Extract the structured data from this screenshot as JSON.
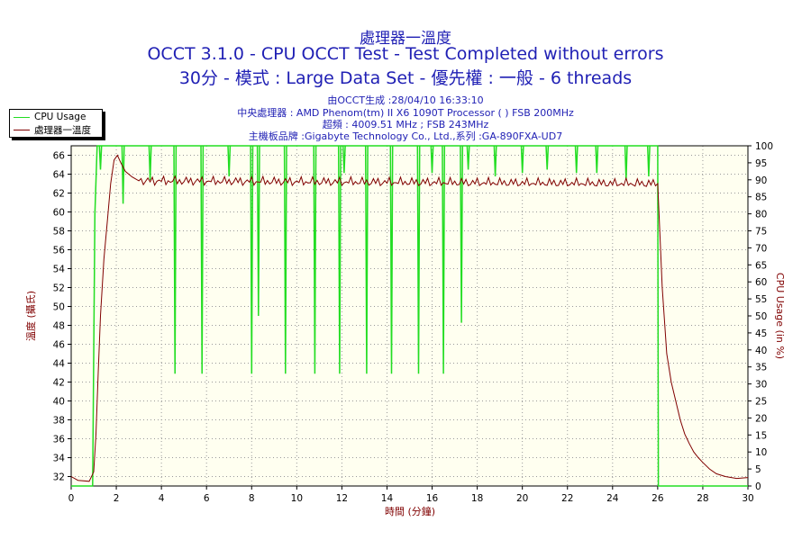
{
  "header": {
    "title_line1": "處理器一溫度",
    "title_line2": "OCCT 3.1.0 - CPU OCCT Test - Test Completed without errors",
    "title_line3": "30分 - 模式 : Large Data Set - 優先權 : 一般 - 6 threads",
    "info_line1": "由OCCT生成 :28/04/10 16:33:10",
    "info_line2": "中央處理器 : AMD Phenom(tm) II X6 1090T Processor (  ) FSB 200MHz",
    "info_line3": "超頻 : 4009.51 MHz ; FSB 243MHz",
    "info_line4": "主機板品牌 :Gigabyte Technology Co., Ltd.,系列 :GA-890FXA-UD7"
  },
  "colors": {
    "cpu_usage": "#22dd22",
    "temperature": "#800000",
    "plot_bg": "#fffff0",
    "grid": "#9a9a9a",
    "text_blue": "#1f1fb4"
  },
  "legend": {
    "items": [
      "CPU Usage",
      "處理器一溫度"
    ],
    "placement": "top-left"
  },
  "chart_data": {
    "type": "line",
    "xlabel": "時間 (分鐘)",
    "ylabel_left": "溫度 (攝氏)",
    "ylabel_right": "CPU Usage (in %)",
    "xlim": [
      0,
      30
    ],
    "ylim_left": [
      31,
      67
    ],
    "ylim_right": [
      0,
      100
    ],
    "x_ticks": [
      0,
      2,
      4,
      6,
      8,
      10,
      12,
      14,
      16,
      18,
      20,
      22,
      24,
      26,
      28,
      30
    ],
    "y_left_ticks": [
      32,
      34,
      36,
      38,
      40,
      42,
      44,
      46,
      48,
      50,
      52,
      54,
      56,
      58,
      60,
      62,
      64,
      66
    ],
    "y_right_ticks": [
      0,
      5,
      10,
      15,
      20,
      25,
      30,
      35,
      40,
      45,
      50,
      55,
      60,
      65,
      70,
      75,
      80,
      85,
      90,
      95,
      100
    ],
    "grid": true,
    "series": [
      {
        "name": "CPU Usage",
        "axis": "right",
        "x": [
          0,
          0.95,
          1.05,
          1.15,
          26.0,
          26.03,
          26.1,
          30
        ],
        "y": [
          0,
          0,
          80,
          100,
          100,
          0,
          0,
          0
        ],
        "dips": [
          {
            "x": 1.3,
            "y": 93
          },
          {
            "x": 2.3,
            "y": 83
          },
          {
            "x": 3.5,
            "y": 90
          },
          {
            "x": 4.6,
            "y": 33
          },
          {
            "x": 5.8,
            "y": 33
          },
          {
            "x": 7.0,
            "y": 91
          },
          {
            "x": 8.0,
            "y": 33
          },
          {
            "x": 8.3,
            "y": 50
          },
          {
            "x": 9.5,
            "y": 33
          },
          {
            "x": 10.8,
            "y": 33
          },
          {
            "x": 11.9,
            "y": 33
          },
          {
            "x": 12.1,
            "y": 92
          },
          {
            "x": 13.1,
            "y": 33
          },
          {
            "x": 14.2,
            "y": 33
          },
          {
            "x": 15.4,
            "y": 33
          },
          {
            "x": 16.0,
            "y": 92
          },
          {
            "x": 16.5,
            "y": 33
          },
          {
            "x": 17.3,
            "y": 48
          },
          {
            "x": 17.6,
            "y": 93
          },
          {
            "x": 18.8,
            "y": 91
          },
          {
            "x": 20.0,
            "y": 92
          },
          {
            "x": 21.1,
            "y": 93
          },
          {
            "x": 22.4,
            "y": 92
          },
          {
            "x": 23.3,
            "y": 92
          },
          {
            "x": 24.6,
            "y": 90
          },
          {
            "x": 25.6,
            "y": 91
          }
        ]
      },
      {
        "name": "處理器一溫度",
        "axis": "left",
        "x": [
          0,
          0.3,
          0.8,
          1.0,
          1.1,
          1.2,
          1.3,
          1.45,
          1.6,
          1.75,
          1.9,
          2.05,
          2.2,
          2.4,
          2.7,
          3.0,
          26.0,
          26.2,
          26.4,
          26.6,
          26.8,
          27.0,
          27.2,
          27.4,
          27.6,
          27.8,
          28.0,
          28.3,
          28.6,
          29.0,
          29.5,
          30
        ],
        "y": [
          32,
          31.6,
          31.5,
          32.5,
          36.5,
          43,
          49,
          55,
          59,
          63,
          65.5,
          66,
          65.2,
          64.3,
          63.7,
          63.3,
          63.0,
          52,
          45,
          42,
          40,
          38,
          36.5,
          35.5,
          34.6,
          34.0,
          33.5,
          32.8,
          32.3,
          32.0,
          31.8,
          31.9
        ]
      }
    ]
  }
}
